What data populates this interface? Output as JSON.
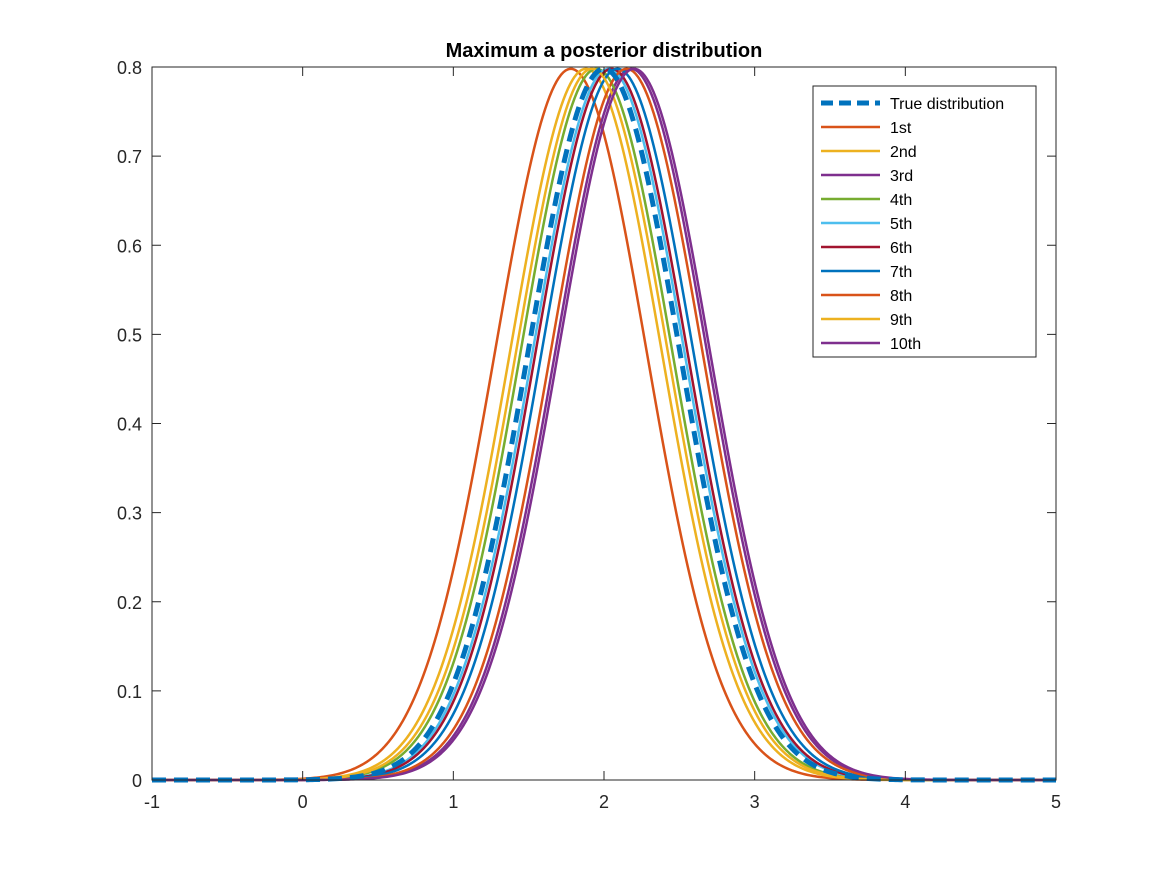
{
  "chart_data": {
    "type": "line",
    "title": "Maximum a posterior distribution",
    "xlabel": "",
    "ylabel": "",
    "xlim": [
      -1,
      5
    ],
    "ylim": [
      0,
      0.8
    ],
    "x_ticks": [
      "-1",
      "0",
      "1",
      "2",
      "3",
      "4",
      "5"
    ],
    "y_ticks": [
      "0",
      "0.1",
      "0.2",
      "0.3",
      "0.4",
      "0.5",
      "0.6",
      "0.7",
      "0.8"
    ],
    "x_tick_values": [
      -1,
      0,
      1,
      2,
      3,
      4,
      5
    ],
    "y_tick_values": [
      0,
      0.1,
      0.2,
      0.3,
      0.4,
      0.5,
      0.6,
      0.7,
      0.8
    ],
    "grid": false,
    "legend_position": "top-right",
    "curve_shape": "gaussian",
    "sigma": 0.5,
    "peak": 0.798,
    "series": [
      {
        "name": "True distribution",
        "mean": 2.0,
        "color": "#0072BD",
        "dashed": true
      },
      {
        "name": "1st",
        "mean": 1.78,
        "color": "#D95319",
        "dashed": false
      },
      {
        "name": "2nd",
        "mean": 1.88,
        "color": "#EDB120",
        "dashed": false
      },
      {
        "name": "3rd",
        "mean": 2.18,
        "color": "#7E2F8E",
        "dashed": false
      },
      {
        "name": "4th",
        "mean": 1.95,
        "color": "#77AC30",
        "dashed": false
      },
      {
        "name": "5th",
        "mean": 2.03,
        "color": "#4DBEEE",
        "dashed": false
      },
      {
        "name": "6th",
        "mean": 2.05,
        "color": "#A2142F",
        "dashed": false
      },
      {
        "name": "7th",
        "mean": 2.09,
        "color": "#0072BD",
        "dashed": false
      },
      {
        "name": "8th",
        "mean": 2.15,
        "color": "#D95319",
        "dashed": false
      },
      {
        "name": "9th",
        "mean": 1.92,
        "color": "#EDB120",
        "dashed": false
      },
      {
        "name": "10th",
        "mean": 2.2,
        "color": "#7E2F8E",
        "dashed": false
      }
    ]
  }
}
